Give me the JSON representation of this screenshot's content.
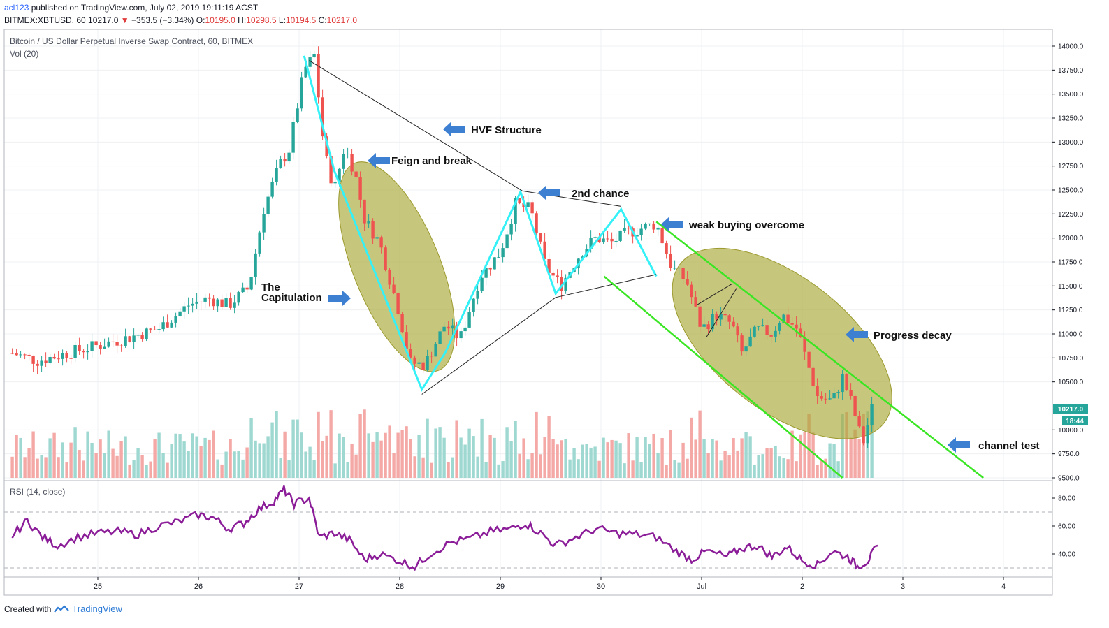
{
  "header": {
    "author": "acl123",
    "published": " published on TradingView.com, July 02, 2019 19:11:19 ACST",
    "symbol": "BITMEX:XBTUSD, 60",
    "last": "10217.0",
    "change_arrow": "▼",
    "change": "−353.5 (−3.34%)",
    "o_label": "O:",
    "o": "10195.0",
    "h_label": "H:",
    "h": "10298.5",
    "l_label": "L:",
    "l": "10194.5",
    "c_label": "C:",
    "c": "10217.0"
  },
  "legend": {
    "title": "Bitcoin / US Dollar Perpetual Inverse Swap Contract, 60, BITMEX",
    "volume": "Vol (20)",
    "rsi": "RSI (14, close)"
  },
  "price_label": "10217.0",
  "countdown_label": "18:44",
  "footer": {
    "created": "Created with",
    "brand": "TradingView"
  },
  "colors": {
    "up": "#26a69a",
    "down": "#ef5350",
    "cyan": "#33f1f7",
    "green": "#3ae623",
    "ellipse_fill": "#a9a838",
    "arrow": "#3d7fd1",
    "rsi": "#8b1d98"
  },
  "annotations": {
    "hvf": "HVF Structure",
    "feign": "Feign and break",
    "second": "2nd chance",
    "weak": "weak buying overcome",
    "cap1": "The",
    "cap2": "Capitulation",
    "decay": "Progress decay",
    "channel": "channel test"
  },
  "chart_data": {
    "type": "candlestick",
    "title": "Bitcoin / US Dollar Perpetual Inverse Swap Contract, 60, BITMEX",
    "x_ticks": [
      "25",
      "26",
      "27",
      "28",
      "29",
      "30",
      "Jul",
      "2",
      "3",
      "4"
    ],
    "y_ticks": [
      "14000.0",
      "13750.0",
      "13500.0",
      "13250.0",
      "13000.0",
      "12750.0",
      "12500.0",
      "12250.0",
      "12000.0",
      "11750.0",
      "11500.0",
      "11250.0",
      "11000.0",
      "10750.0",
      "10500.0",
      "10000.0",
      "9750.0",
      "9500.0"
    ],
    "y_range": [
      9500,
      14000
    ],
    "last_price": 10217.0,
    "rsi_ticks": [
      "80.00",
      "60.00",
      "40.00"
    ],
    "rsi_bands": [
      70,
      30
    ],
    "price_path": [
      [
        24.15,
        10800
      ],
      [
        24.4,
        10720
      ],
      [
        24.7,
        10800
      ],
      [
        25.0,
        10880
      ],
      [
        25.3,
        10960
      ],
      [
        25.6,
        11050
      ],
      [
        25.9,
        11300
      ],
      [
        26.1,
        11370
      ],
      [
        26.3,
        11300
      ],
      [
        26.5,
        11480
      ],
      [
        26.65,
        12300
      ],
      [
        26.8,
        12750
      ],
      [
        26.9,
        12920
      ],
      [
        27.05,
        13750
      ],
      [
        27.15,
        13900
      ],
      [
        27.25,
        12900
      ],
      [
        27.35,
        12500
      ],
      [
        27.45,
        12950
      ],
      [
        27.55,
        12700
      ],
      [
        27.65,
        12200
      ],
      [
        27.8,
        11950
      ],
      [
        28.0,
        11200
      ],
      [
        28.1,
        10700
      ],
      [
        28.25,
        10680
      ],
      [
        28.45,
        11100
      ],
      [
        28.6,
        10950
      ],
      [
        28.8,
        11600
      ],
      [
        29.0,
        11850
      ],
      [
        29.15,
        12350
      ],
      [
        29.3,
        12300
      ],
      [
        29.45,
        11700
      ],
      [
        29.6,
        11500
      ],
      [
        29.8,
        11850
      ],
      [
        29.95,
        12000
      ],
      [
        30.1,
        11950
      ],
      [
        30.25,
        12050
      ],
      [
        30.4,
        12100
      ],
      [
        30.55,
        12150
      ],
      [
        30.7,
        11700
      ],
      [
        30.85,
        11550
      ],
      [
        31.0,
        11050
      ],
      [
        31.15,
        11200
      ],
      [
        31.3,
        11100
      ],
      [
        31.4,
        10800
      ],
      [
        31.55,
        11050
      ],
      [
        31.7,
        11000
      ],
      [
        31.8,
        11200
      ],
      [
        31.95,
        11050
      ],
      [
        32.05,
        10700
      ],
      [
        32.15,
        10350
      ],
      [
        32.3,
        10300
      ],
      [
        32.4,
        10550
      ],
      [
        32.5,
        10250
      ],
      [
        32.6,
        9850
      ],
      [
        32.7,
        10250
      ]
    ],
    "rsi": [
      [
        24.15,
        53
      ],
      [
        24.3,
        64
      ],
      [
        24.45,
        52
      ],
      [
        24.6,
        46
      ],
      [
        24.8,
        52
      ],
      [
        25.0,
        55
      ],
      [
        25.2,
        56
      ],
      [
        25.4,
        54
      ],
      [
        25.6,
        60
      ],
      [
        25.8,
        63
      ],
      [
        26.0,
        68
      ],
      [
        26.15,
        66
      ],
      [
        26.3,
        58
      ],
      [
        26.45,
        62
      ],
      [
        26.6,
        72
      ],
      [
        26.75,
        78
      ],
      [
        26.85,
        86
      ],
      [
        26.95,
        76
      ],
      [
        27.1,
        80
      ],
      [
        27.2,
        52
      ],
      [
        27.35,
        55
      ],
      [
        27.5,
        50
      ],
      [
        27.65,
        36
      ],
      [
        27.8,
        40
      ],
      [
        28.0,
        35
      ],
      [
        28.15,
        31
      ],
      [
        28.3,
        40
      ],
      [
        28.5,
        48
      ],
      [
        28.7,
        51
      ],
      [
        28.9,
        56
      ],
      [
        29.1,
        58
      ],
      [
        29.25,
        62
      ],
      [
        29.4,
        55
      ],
      [
        29.55,
        46
      ],
      [
        29.75,
        52
      ],
      [
        29.95,
        58
      ],
      [
        30.15,
        55
      ],
      [
        30.35,
        54
      ],
      [
        30.55,
        52
      ],
      [
        30.75,
        42
      ],
      [
        30.9,
        36
      ],
      [
        31.05,
        42
      ],
      [
        31.25,
        38
      ],
      [
        31.4,
        44
      ],
      [
        31.55,
        46
      ],
      [
        31.7,
        38
      ],
      [
        31.85,
        45
      ],
      [
        32.0,
        35
      ],
      [
        32.15,
        32
      ],
      [
        32.3,
        42
      ],
      [
        32.45,
        38
      ],
      [
        32.55,
        31
      ],
      [
        32.65,
        35
      ],
      [
        32.75,
        46
      ]
    ]
  }
}
